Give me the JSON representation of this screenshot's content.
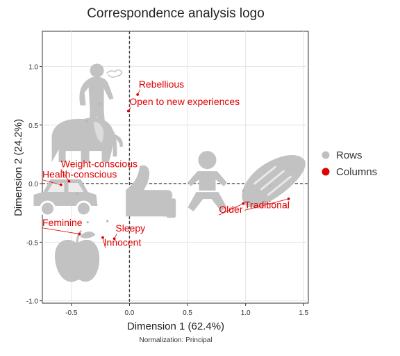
{
  "chart_data": {
    "type": "scatter",
    "title": "Correspondence analysis logo",
    "xlabel": "Dimension 1 (62.4%)",
    "ylabel": "Dimension 2 (24.2%)",
    "footnote": "Normalization: Principal",
    "xlim": [
      -0.75,
      1.54
    ],
    "ylim": [
      -1.02,
      1.3
    ],
    "xticks": [
      -0.5,
      0.0,
      0.5,
      1.0,
      1.5
    ],
    "xtick_labels": [
      "-0.5",
      "0.0",
      "0.5",
      "1.0",
      "1.5"
    ],
    "yticks": [
      -1.0,
      -0.5,
      0.0,
      0.5,
      1.0
    ],
    "ytick_labels": [
      "-1.0",
      "-0.5",
      "0.0",
      "0.5",
      "1.0"
    ],
    "grid": true,
    "legend_position": "right",
    "legend": [
      {
        "name": "Rows",
        "color": "#c0c0c0"
      },
      {
        "name": "Columns",
        "color": "#e00000"
      }
    ],
    "rows_icons": [
      {
        "icon": "person-smoking-icon",
        "x": -0.28,
        "y": 0.68
      },
      {
        "icon": "elephant-icon",
        "x": -0.37,
        "y": 0.35
      },
      {
        "icon": "baby-icon",
        "x": 0.67,
        "y": 0.0
      },
      {
        "icon": "bread-icon",
        "x": 1.22,
        "y": 0.0
      },
      {
        "icon": "car-icon",
        "x": -0.55,
        "y": -0.13
      },
      {
        "icon": "thumbs-up-icon",
        "x": 0.16,
        "y": -0.09
      },
      {
        "icon": "apple-icon",
        "x": -0.45,
        "y": -0.64
      }
    ],
    "row_points": [
      {
        "x": -0.26,
        "y": 0.68,
        "x_label": -0.25,
        "y_label": 0.66
      },
      {
        "x": -0.37,
        "y": 0.53
      },
      {
        "x": 0.98,
        "y": -0.06
      },
      {
        "x": 1.21,
        "y": -0.02
      },
      {
        "x": -0.45,
        "y": -0.09
      },
      {
        "x": -0.19,
        "y": -0.32
      },
      {
        "x": -0.36,
        "y": -0.33
      }
    ],
    "columns": [
      {
        "label": "Rebellious",
        "x": 0.07,
        "y": 0.76,
        "lx": 0.08,
        "ly": 0.82
      },
      {
        "label": "Open to new experiences",
        "x": -0.01,
        "y": 0.62,
        "lx": 0.0,
        "ly": 0.67
      },
      {
        "label": "Weight-conscious",
        "x": -0.52,
        "y": 0.02,
        "lx": -0.59,
        "ly": 0.14
      },
      {
        "label": "Health-conscious",
        "x": -0.59,
        "y": -0.01,
        "lx": -0.75,
        "ly": 0.05
      },
      {
        "label": "Feminine",
        "x": -0.43,
        "y": -0.43,
        "lx": -0.75,
        "ly": -0.36
      },
      {
        "label": "Sleepy",
        "x": -0.13,
        "y": -0.47,
        "lx": -0.12,
        "ly": -0.41
      },
      {
        "label": "Innocent",
        "x": -0.23,
        "y": -0.46,
        "lx": -0.22,
        "ly": -0.53
      },
      {
        "label": "Older",
        "x": 0.98,
        "y": -0.17,
        "lx": 0.77,
        "ly": -0.25
      },
      {
        "label": "Traditional",
        "x": 1.37,
        "y": -0.13,
        "lx": 0.99,
        "ly": -0.21
      }
    ]
  }
}
